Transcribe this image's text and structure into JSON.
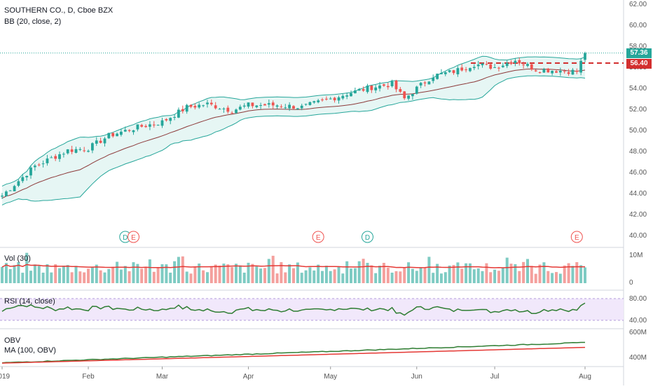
{
  "header": {
    "symbol_line": "SOUTHERN CO., D, Cboe BZX",
    "bb_line": "BB (20, close, 2)"
  },
  "panes": {
    "volume_label": "Vol (30)",
    "rsi_label": "RSI (14, close)",
    "obv_label": "OBV",
    "obv_ma_label": "MA (100, OBV)"
  },
  "price_tags": {
    "last": "57.36",
    "level": "56.40"
  },
  "colors": {
    "up": "#26a69a",
    "down": "#ef5350",
    "bb_fill": "#e6f6f4",
    "bb_line": "#26a69a",
    "bb_mid": "#8d3a3a",
    "rsi_band": "#f1e8fb",
    "rsi_line": "#2e7d32",
    "obv_line": "#2e7d32",
    "obv_ma": "#e53935",
    "level_line": "#d32f2f",
    "last_line": "#26a69a"
  },
  "events": [
    {
      "label": "D",
      "date_index": 30,
      "color": "#26a69a"
    },
    {
      "label": "E",
      "date_index": 32,
      "color": "#ef5350"
    },
    {
      "label": "E",
      "date_index": 77,
      "color": "#ef5350"
    },
    {
      "label": "D",
      "date_index": 89,
      "color": "#26a69a"
    },
    {
      "label": "E",
      "date_index": 140,
      "color": "#ef5350"
    }
  ],
  "chart_data": {
    "type": "candlestick",
    "title": "SOUTHERN CO., D, Cboe BZX",
    "x_tick_labels": [
      "2019",
      "Feb",
      "Mar",
      "Apr",
      "May",
      "Jun",
      "Jul",
      "Aug"
    ],
    "x_tick_indices": [
      0,
      21,
      39,
      60,
      80,
      101,
      120,
      142
    ],
    "price_ylim": [
      39,
      63
    ],
    "price_ticks": [
      "62.00",
      "60.00",
      "58.00",
      "56.00",
      "54.00",
      "52.00",
      "50.00",
      "48.00",
      "46.00",
      "44.00",
      "42.00",
      "40.00"
    ],
    "volume_ticks": [
      "10M",
      "0"
    ],
    "rsi_ticks": [
      "80.00",
      "40.00"
    ],
    "rsi_band": [
      30,
      70
    ],
    "obv_ticks": [
      "600M",
      "400M"
    ],
    "anchors": [
      [
        0,
        43.8
      ],
      [
        8,
        46.6
      ],
      [
        16,
        48.1
      ],
      [
        21,
        48.3
      ],
      [
        26,
        49.5
      ],
      [
        33,
        50.3
      ],
      [
        39,
        50.8
      ],
      [
        45,
        52.2
      ],
      [
        50,
        52.5
      ],
      [
        56,
        51.9
      ],
      [
        60,
        52.4
      ],
      [
        67,
        52.4
      ],
      [
        73,
        52.2
      ],
      [
        80,
        53.0
      ],
      [
        85,
        53.6
      ],
      [
        90,
        54.1
      ],
      [
        95,
        54.4
      ],
      [
        98,
        53.0
      ],
      [
        101,
        54.0
      ],
      [
        105,
        55.2
      ],
      [
        110,
        55.6
      ],
      [
        115,
        56.3
      ],
      [
        120,
        56.0
      ],
      [
        125,
        56.7
      ],
      [
        130,
        55.8
      ],
      [
        135,
        55.7
      ],
      [
        140,
        55.6
      ],
      [
        142,
        57.36
      ]
    ],
    "series": [
      {
        "name": "BB (20, close, 2)"
      },
      {
        "name": "Vol (30)"
      },
      {
        "name": "RSI (14, close)"
      },
      {
        "name": "OBV"
      },
      {
        "name": "MA (100, OBV)"
      }
    ],
    "last_price": 57.36,
    "horizontal_level": 56.4,
    "grid": false,
    "legend": "top-left"
  }
}
